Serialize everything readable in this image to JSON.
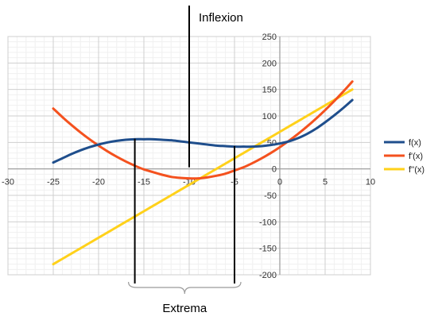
{
  "chart_data": {
    "type": "line",
    "title": "",
    "xlabel": "",
    "ylabel": "",
    "xlim": [
      -30,
      10
    ],
    "ylim": [
      -200,
      250
    ],
    "x_ticks": [
      -30,
      -25,
      -20,
      -15,
      -10,
      -5,
      0,
      5,
      10
    ],
    "x_tick_labels": [
      "-30",
      "-25",
      "-20",
      "-15",
      "-10",
      "-5",
      "0",
      "5",
      "10"
    ],
    "y_ticks": [
      -200,
      -150,
      -100,
      -50,
      0,
      50,
      100,
      150,
      200,
      250
    ],
    "y_tick_labels": [
      "-200",
      "-150",
      "-100",
      "-50",
      "0",
      "50",
      "100",
      "150",
      "200",
      "250"
    ],
    "grid": true,
    "legend_position": "right",
    "x": [
      -25,
      -24,
      -23,
      -22,
      -21,
      -20,
      -19,
      -18,
      -17,
      -16,
      -15,
      -14,
      -13,
      -12,
      -11,
      -10,
      -9,
      -8,
      -7,
      -6,
      -5,
      -4,
      -3,
      -2,
      -1,
      0,
      1,
      2,
      3,
      4,
      5,
      6,
      7,
      8
    ],
    "series": [
      {
        "name": "f(x)",
        "color": "#1f4e8c",
        "values": [
          12,
          20,
          28,
          35,
          41,
          46,
          50,
          53,
          55,
          56,
          56,
          56,
          55,
          54,
          52,
          50,
          48,
          46,
          44,
          43,
          42,
          42,
          42,
          43,
          45,
          48,
          52,
          58,
          66,
          76,
          88,
          101,
          115,
          130
        ]
      },
      {
        "name": "f'(x)",
        "color": "#f4511e",
        "values": [
          114,
          98,
          83,
          69,
          56,
          44,
          33,
          23,
          14,
          6,
          -1,
          -6,
          -11,
          -15,
          -17,
          -18,
          -18,
          -16,
          -13,
          -9,
          -3,
          3,
          11,
          20,
          30,
          41,
          53,
          66,
          80,
          95,
          111,
          128,
          146,
          165
        ]
      },
      {
        "name": "f''(x)",
        "color": "#ffd11a",
        "values": [
          -180,
          -170,
          -160,
          -150,
          -140,
          -130,
          -120,
          -110,
          -100,
          -90,
          -80,
          -70,
          -60,
          -50,
          -40,
          -30,
          -20,
          -10,
          0,
          10,
          20,
          30,
          40,
          50,
          60,
          70,
          80,
          90,
          100,
          110,
          120,
          130,
          140,
          150
        ]
      }
    ],
    "annotations": {
      "inflexion": {
        "label": "Inflexion",
        "x": -10,
        "y_from": 3,
        "y_to": 308
      },
      "extrema": {
        "label": "Extrema",
        "lines": [
          {
            "x": -16,
            "y_from": -217,
            "y_to": 57
          },
          {
            "x": -5,
            "y_from": -217,
            "y_to": 43
          }
        ]
      }
    }
  }
}
